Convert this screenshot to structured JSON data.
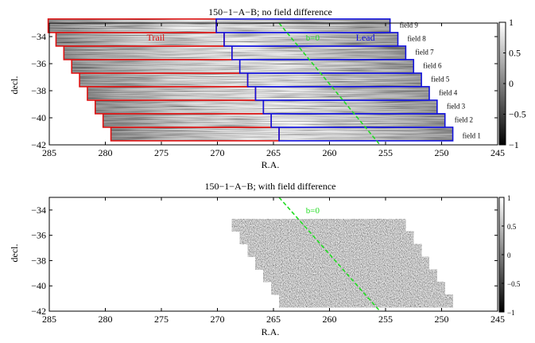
{
  "chart_data": [
    {
      "type": "heatmap",
      "title": "150−1−A−B; no field difference",
      "xlabel": "R.A.",
      "ylabel": "decl.",
      "xlim": [
        285,
        245
      ],
      "ylim": [
        -42,
        -33
      ],
      "xticks": [
        285,
        280,
        275,
        270,
        265,
        260,
        255,
        250,
        245
      ],
      "yticks": [
        -34,
        -36,
        -38,
        -40,
        -42
      ],
      "colorbar": {
        "range": [
          -1,
          1
        ],
        "ticks": [
          "1",
          "0.5",
          "0",
          "-0.5",
          "-1"
        ]
      },
      "groups": [
        {
          "label": "Trail",
          "color": "#dd1111"
        },
        {
          "label": "Lead",
          "color": "#1111dd"
        }
      ],
      "line": {
        "label": "b=0",
        "color": "#22dd22",
        "x": [
          264.5,
          255.5
        ],
        "y": [
          -33,
          -42
        ]
      },
      "fields": [
        {
          "name": "field 1",
          "ra_start": 279.5,
          "ra_split": 264.5,
          "ra_end": 249.0,
          "decl": -41.2
        },
        {
          "name": "field 2",
          "ra_start": 280.2,
          "ra_split": 265.2,
          "ra_end": 249.7,
          "decl": -40.2
        },
        {
          "name": "field 3",
          "ra_start": 280.9,
          "ra_split": 265.9,
          "ra_end": 250.4,
          "decl": -39.2
        },
        {
          "name": "field 4",
          "ra_start": 281.6,
          "ra_split": 266.6,
          "ra_end": 251.1,
          "decl": -38.2
        },
        {
          "name": "field 5",
          "ra_start": 282.3,
          "ra_split": 267.3,
          "ra_end": 251.8,
          "decl": -37.2
        },
        {
          "name": "field 6",
          "ra_start": 283.0,
          "ra_split": 268.0,
          "ra_end": 252.5,
          "decl": -36.2
        },
        {
          "name": "field 7",
          "ra_start": 283.7,
          "ra_split": 268.7,
          "ra_end": 253.2,
          "decl": -35.2
        },
        {
          "name": "field 8",
          "ra_start": 284.4,
          "ra_split": 269.4,
          "ra_end": 253.9,
          "decl": -34.2
        },
        {
          "name": "field 9",
          "ra_start": 285.1,
          "ra_split": 270.1,
          "ra_end": 254.6,
          "decl": -33.2
        }
      ]
    },
    {
      "type": "heatmap",
      "title": "150−1−A−B; with field difference",
      "xlabel": "R.A.",
      "ylabel": "decl.",
      "xlim": [
        285,
        245
      ],
      "ylim": [
        -42,
        -33
      ],
      "xticks": [
        285,
        280,
        275,
        270,
        265,
        260,
        255,
        250,
        245
      ],
      "yticks": [
        -34,
        -36,
        -38,
        -40,
        -42
      ],
      "colorbar": {
        "range": [
          -1,
          1
        ],
        "ticks": [
          "1",
          "0.5",
          "0",
          "-0.5",
          "-1"
        ]
      },
      "line": {
        "label": "b=0",
        "color": "#22dd22",
        "x": [
          264.5,
          255.5
        ],
        "y": [
          -33,
          -42
        ]
      },
      "rows": [
        {
          "ra_start": 264.5,
          "ra_end": 249.0,
          "decl": -41.2
        },
        {
          "ra_start": 265.2,
          "ra_end": 249.7,
          "decl": -40.2
        },
        {
          "ra_start": 265.9,
          "ra_end": 250.4,
          "decl": -39.2
        },
        {
          "ra_start": 266.6,
          "ra_end": 251.1,
          "decl": -38.2
        },
        {
          "ra_start": 267.3,
          "ra_end": 251.8,
          "decl": -37.2
        },
        {
          "ra_start": 268.0,
          "ra_end": 252.5,
          "decl": -36.2
        },
        {
          "ra_start": 268.7,
          "ra_end": 253.2,
          "decl": -35.2
        }
      ]
    }
  ]
}
